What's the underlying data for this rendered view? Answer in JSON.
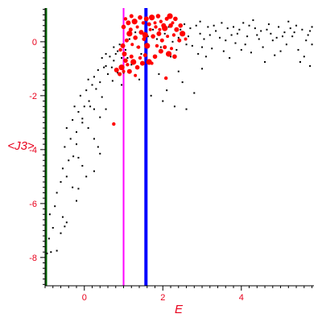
{
  "chart_data": {
    "type": "scatter",
    "title": "",
    "xlabel": "E",
    "ylabel": "<J3>",
    "xlim": [
      -1.0,
      5.85
    ],
    "ylim": [
      -9.05,
      1.25
    ],
    "x_ticks": [
      0,
      2,
      4
    ],
    "x_tick_labels": [
      "0",
      "2",
      "4"
    ],
    "y_ticks": [
      0,
      -2,
      -4,
      -6,
      -8
    ],
    "y_tick_labels": [
      "0",
      "-2",
      "-4",
      "-6",
      "-8"
    ],
    "grid": false,
    "legend": "none",
    "colors": {
      "axis": "#000000",
      "text": "#e8001c",
      "series_black": "#000000",
      "series_red": "#ff0000",
      "line_green": "#006400",
      "line_magenta": "#ff00ff",
      "line_blue": "#0000ff"
    },
    "vertical_lines": [
      {
        "x": -0.98,
        "color": "#006400"
      },
      {
        "x": 1.0,
        "color": "#ff00ff"
      },
      {
        "x": 1.57,
        "color": "#0000ff"
      }
    ],
    "series": [
      {
        "color": "#000000",
        "marker": "small-dot",
        "points": [
          [
            -0.95,
            -7.85
          ],
          [
            -0.85,
            -7.8
          ],
          [
            -0.7,
            -7.75
          ],
          [
            -0.9,
            -7.3
          ],
          [
            -0.8,
            -6.9
          ],
          [
            -0.6,
            -7.1
          ],
          [
            -0.5,
            -6.85
          ],
          [
            -0.88,
            -6.4
          ],
          [
            -0.75,
            -6.1
          ],
          [
            -0.55,
            -6.5
          ],
          [
            -0.45,
            -6.7
          ],
          [
            -0.7,
            -5.6
          ],
          [
            -0.6,
            -5.2
          ],
          [
            -0.45,
            -5.0
          ],
          [
            -0.3,
            -5.4
          ],
          [
            -0.2,
            -5.9
          ],
          [
            -0.15,
            -5.45
          ],
          [
            -0.55,
            -4.7
          ],
          [
            -0.4,
            -4.4
          ],
          [
            -0.28,
            -4.25
          ],
          [
            -0.15,
            -4.3
          ],
          [
            -0.05,
            -4.6
          ],
          [
            0.05,
            -5.0
          ],
          [
            0.25,
            -4.8
          ],
          [
            0.4,
            -4.15
          ],
          [
            -0.5,
            -3.9
          ],
          [
            -0.35,
            -3.6
          ],
          [
            -0.2,
            -3.35
          ],
          [
            -0.05,
            -3.0
          ],
          [
            0.1,
            -3.2
          ],
          [
            0.25,
            -3.6
          ],
          [
            0.35,
            -3.9
          ],
          [
            -0.2,
            -3.8
          ],
          [
            -0.45,
            -3.2
          ],
          [
            -0.3,
            -2.9
          ],
          [
            -0.15,
            -2.6
          ],
          [
            0.0,
            -2.4
          ],
          [
            0.12,
            -2.2
          ],
          [
            0.25,
            -2.5
          ],
          [
            0.4,
            -2.8
          ],
          [
            -0.05,
            -2.85
          ],
          [
            -0.25,
            -2.4
          ],
          [
            -0.1,
            -2.0
          ],
          [
            0.05,
            -1.8
          ],
          [
            0.2,
            -1.6
          ],
          [
            0.3,
            -1.75
          ],
          [
            0.45,
            -2.05
          ],
          [
            0.55,
            -2.5
          ],
          [
            0.15,
            -2.4
          ],
          [
            0.1,
            -1.4
          ],
          [
            0.25,
            -1.3
          ],
          [
            0.35,
            -1.05
          ],
          [
            0.5,
            -0.95
          ],
          [
            0.6,
            -1.2
          ],
          [
            0.72,
            -1.45
          ],
          [
            0.4,
            -1.5
          ],
          [
            0.45,
            -0.6
          ],
          [
            0.55,
            -0.45
          ],
          [
            0.65,
            -0.55
          ],
          [
            0.75,
            -0.7
          ],
          [
            0.85,
            -0.35
          ],
          [
            0.95,
            -0.6
          ],
          [
            0.7,
            -0.95
          ],
          [
            0.85,
            -1.15
          ],
          [
            0.55,
            -0.9
          ],
          [
            0.75,
            -0.2
          ],
          [
            0.9,
            -0.1
          ],
          [
            1.05,
            -0.3
          ],
          [
            1.15,
            0.1
          ],
          [
            1.3,
            0.35
          ],
          [
            1.35,
            -0.2
          ],
          [
            1.45,
            -0.45
          ],
          [
            1.55,
            -0.1
          ],
          [
            1.62,
            0.2
          ],
          [
            1.75,
            0.45
          ],
          [
            1.85,
            0.1
          ],
          [
            1.95,
            -0.2
          ],
          [
            2.05,
            0.3
          ],
          [
            2.15,
            0.55
          ],
          [
            2.25,
            0.0
          ],
          [
            2.35,
            -0.3
          ],
          [
            2.45,
            0.45
          ],
          [
            2.55,
            0.65
          ],
          [
            2.65,
            0.2
          ],
          [
            2.75,
            -0.15
          ],
          [
            2.85,
            0.6
          ],
          [
            2.95,
            0.3
          ],
          [
            3.05,
            0.1
          ],
          [
            3.15,
            0.55
          ],
          [
            3.25,
            -0.25
          ],
          [
            3.35,
            0.4
          ],
          [
            3.45,
            0.15
          ],
          [
            3.55,
            -0.35
          ],
          [
            3.65,
            0.5
          ],
          [
            3.75,
            0.25
          ],
          [
            3.85,
            -0.05
          ],
          [
            3.95,
            0.45
          ],
          [
            4.05,
            0.7
          ],
          [
            4.15,
            0.2
          ],
          [
            4.25,
            -0.4
          ],
          [
            4.35,
            0.5
          ],
          [
            4.45,
            0.1
          ],
          [
            4.55,
            -0.2
          ],
          [
            4.65,
            0.45
          ],
          [
            4.75,
            0.3
          ],
          [
            4.85,
            -0.5
          ],
          [
            4.95,
            0.55
          ],
          [
            5.05,
            0.2
          ],
          [
            5.15,
            -0.1
          ],
          [
            5.25,
            0.5
          ],
          [
            5.35,
            0.35
          ],
          [
            5.45,
            -0.3
          ],
          [
            5.55,
            0.45
          ],
          [
            5.65,
            0.05
          ],
          [
            5.75,
            0.4
          ],
          [
            5.8,
            -0.1
          ],
          [
            2.6,
            -0.1
          ],
          [
            2.9,
            -0.45
          ],
          [
            3.2,
            0.25
          ],
          [
            3.5,
            0.7
          ],
          [
            3.8,
            0.55
          ],
          [
            4.1,
            -0.1
          ],
          [
            4.4,
            0.25
          ],
          [
            4.7,
            0.65
          ],
          [
            5.0,
            -0.35
          ],
          [
            5.3,
            0.2
          ],
          [
            5.6,
            -0.55
          ],
          [
            2.2,
            -0.55
          ],
          [
            2.4,
            0.15
          ],
          [
            2.7,
            0.5
          ],
          [
            3.0,
            -0.2
          ],
          [
            3.3,
            0.6
          ],
          [
            3.6,
            0.05
          ],
          [
            3.9,
            0.3
          ],
          [
            4.2,
            0.6
          ],
          [
            4.5,
            0.4
          ],
          [
            4.8,
            0.05
          ],
          [
            5.1,
            0.35
          ],
          [
            5.4,
            0.6
          ],
          [
            5.7,
            0.25
          ],
          [
            3.1,
            -0.55
          ],
          [
            4.0,
            -0.3
          ],
          [
            4.9,
            0.15
          ],
          [
            5.5,
            -0.75
          ],
          [
            1.9,
            -1.2
          ],
          [
            2.0,
            -2.2
          ],
          [
            2.3,
            -2.4
          ],
          [
            2.5,
            -1.5
          ],
          [
            2.1,
            -1.8
          ],
          [
            1.7,
            -2.0
          ],
          [
            2.6,
            -2.5
          ],
          [
            2.8,
            -1.9
          ],
          [
            1.4,
            -1.4
          ],
          [
            1.2,
            -0.85
          ],
          [
            1.0,
            -1.15
          ],
          [
            0.95,
            -1.6
          ],
          [
            0.8,
            -0.45
          ],
          [
            1.1,
            -0.6
          ],
          [
            2.4,
            -1.1
          ],
          [
            3.0,
            -1.0
          ],
          [
            5.8,
            0.55
          ],
          [
            5.75,
            -0.9
          ],
          [
            4.6,
            -0.75
          ],
          [
            3.7,
            -0.6
          ],
          [
            4.3,
            0.8
          ],
          [
            5.2,
            0.75
          ],
          [
            2.95,
            0.75
          ],
          [
            1.6,
            -0.75
          ]
        ]
      },
      {
        "color": "#ff0000",
        "marker": "blob",
        "points": [
          [
            0.75,
            -3.05
          ],
          [
            0.82,
            -1.05
          ],
          [
            0.9,
            -1.2
          ],
          [
            0.95,
            -0.95
          ],
          [
            1.0,
            -1.1
          ],
          [
            1.05,
            -0.7
          ],
          [
            1.1,
            -0.85
          ],
          [
            1.15,
            -1.1
          ],
          [
            1.2,
            -0.55
          ],
          [
            1.25,
            -0.75
          ],
          [
            1.3,
            -1.25
          ],
          [
            1.35,
            -0.95
          ],
          [
            1.42,
            -0.6
          ],
          [
            1.48,
            -0.8
          ],
          [
            1.55,
            -0.5
          ],
          [
            1.65,
            -0.75
          ],
          [
            1.72,
            -0.8
          ],
          [
            1.8,
            -0.55
          ],
          [
            0.92,
            -0.3
          ],
          [
            1.02,
            -0.45
          ],
          [
            1.08,
            0.05
          ],
          [
            1.15,
            0.3
          ],
          [
            1.22,
            -0.1
          ],
          [
            1.3,
            0.15
          ],
          [
            1.38,
            -0.2
          ],
          [
            1.45,
            0.35
          ],
          [
            1.52,
            0.1
          ],
          [
            1.6,
            -0.15
          ],
          [
            1.68,
            0.45
          ],
          [
            1.75,
            0.2
          ],
          [
            1.82,
            0.55
          ],
          [
            1.9,
            0.3
          ],
          [
            1.98,
            0.05
          ],
          [
            2.05,
            0.5
          ],
          [
            2.12,
            0.2
          ],
          [
            2.2,
            0.6
          ],
          [
            2.28,
            0.25
          ],
          [
            2.35,
            0.45
          ],
          [
            2.42,
            0.05
          ],
          [
            2.5,
            0.3
          ],
          [
            2.58,
            0.1
          ],
          [
            1.0,
            0.55
          ],
          [
            1.05,
            0.85
          ],
          [
            1.12,
            0.7
          ],
          [
            1.2,
            0.95
          ],
          [
            1.28,
            0.75
          ],
          [
            1.35,
            0.55
          ],
          [
            1.42,
            0.9
          ],
          [
            1.5,
            0.7
          ],
          [
            1.58,
            0.85
          ],
          [
            1.65,
            0.65
          ],
          [
            1.72,
            0.9
          ],
          [
            1.8,
            0.7
          ],
          [
            1.88,
            0.95
          ],
          [
            1.95,
            0.75
          ],
          [
            2.02,
            0.6
          ],
          [
            2.1,
            0.85
          ],
          [
            2.18,
            0.95
          ],
          [
            2.25,
            0.7
          ],
          [
            2.32,
            0.85
          ],
          [
            1.85,
            -0.15
          ],
          [
            1.95,
            -0.35
          ],
          [
            2.05,
            -0.2
          ],
          [
            2.15,
            -0.45
          ],
          [
            2.22,
            -0.25
          ],
          [
            2.3,
            -0.55
          ],
          [
            2.08,
            -1.35
          ],
          [
            0.98,
            -0.15
          ],
          [
            1.18,
            0.45
          ],
          [
            1.55,
            0.25
          ],
          [
            1.92,
            0.45
          ],
          [
            2.45,
            0.6
          ]
        ]
      }
    ]
  }
}
